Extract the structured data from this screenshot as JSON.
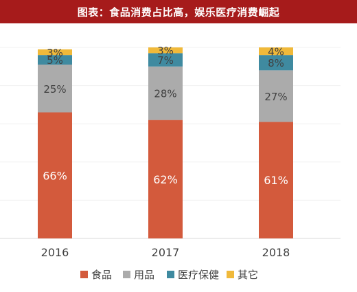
{
  "header": {
    "title": "图表：食品消费占比高，娱乐医疗消费崛起"
  },
  "chart_data": {
    "type": "bar",
    "stacked": true,
    "categories": [
      "2016",
      "2017",
      "2018"
    ],
    "series": [
      {
        "name": "食品",
        "values": [
          66,
          62,
          61
        ],
        "color": "#d35a3c"
      },
      {
        "name": "用品",
        "values": [
          25,
          28,
          27
        ],
        "color": "#ababab"
      },
      {
        "name": "医疗保健",
        "values": [
          5,
          7,
          8
        ],
        "color": "#3f8aa0"
      },
      {
        "name": "其它",
        "values": [
          3,
          3,
          4
        ],
        "color": "#f0b93a"
      }
    ],
    "ylim": [
      0,
      100
    ],
    "grid": true,
    "legend": "bottom"
  }
}
